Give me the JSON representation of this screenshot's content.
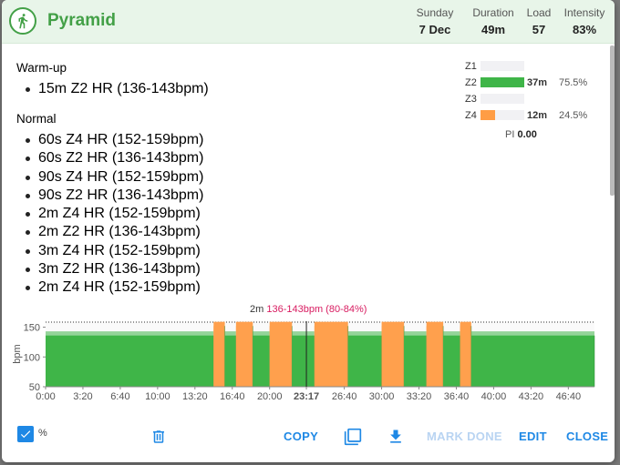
{
  "workout": {
    "title": "Pyramid",
    "stats": [
      {
        "label": "Sunday",
        "value": "7 Dec"
      },
      {
        "label": "Duration",
        "value": "49m"
      },
      {
        "label": "Load",
        "value": "57"
      },
      {
        "label": "Intensity",
        "value": "83%"
      }
    ]
  },
  "sections": [
    {
      "name": "Warm-up",
      "steps": [
        "15m Z2 HR (136-143bpm)"
      ]
    },
    {
      "name": "Normal",
      "steps": [
        "60s Z4 HR (152-159bpm)",
        "60s Z2 HR (136-143bpm)",
        "90s Z4 HR (152-159bpm)",
        "90s Z2 HR (136-143bpm)",
        "2m Z4 HR (152-159bpm)",
        "2m Z2 HR (136-143bpm)",
        "3m Z4 HR (152-159bpm)",
        "3m Z2 HR (136-143bpm)",
        "2m Z4 HR (152-159bpm)"
      ]
    }
  ],
  "zones": [
    {
      "label": "Z1",
      "time": "",
      "percent": "",
      "fraction": 0,
      "color": ""
    },
    {
      "label": "Z2",
      "time": "37m",
      "percent": "75.5%",
      "fraction": 1.0,
      "color": "#3fb548"
    },
    {
      "label": "Z3",
      "time": "",
      "percent": "",
      "fraction": 0,
      "color": ""
    },
    {
      "label": "Z4",
      "time": "12m",
      "percent": "24.5%",
      "fraction": 0.33,
      "color": "#ff9d45"
    }
  ],
  "pi": {
    "label": "PI",
    "value": "0.00"
  },
  "hover": {
    "duration": "2m",
    "range": "136-143bpm (80-84%)"
  },
  "colors": {
    "z2": "#3fb548",
    "z4": "#ffa04d",
    "accent": "#1e88e5",
    "title": "#43a047"
  },
  "chart_data": {
    "type": "area",
    "ylabel": "bpm",
    "ylim": [
      50,
      160
    ],
    "yticks": [
      50,
      100,
      150
    ],
    "xlim": [
      0,
      49
    ],
    "xticks": [
      "0:00",
      "3:20",
      "6:40",
      "10:00",
      "13:20",
      "16:40",
      "20:00",
      "23:17",
      "26:40",
      "30:00",
      "33:20",
      "36:40",
      "40:00",
      "43:20",
      "46:40"
    ],
    "highlight_tick": "23:17",
    "segments": [
      {
        "start": 0,
        "minutes": 15,
        "zone": "Z2",
        "low": 136,
        "high": 143
      },
      {
        "start": 15,
        "minutes": 1,
        "zone": "Z4",
        "low": 152,
        "high": 159
      },
      {
        "start": 16,
        "minutes": 1,
        "zone": "Z2",
        "low": 136,
        "high": 143
      },
      {
        "start": 17,
        "minutes": 1.5,
        "zone": "Z4",
        "low": 152,
        "high": 159
      },
      {
        "start": 18.5,
        "minutes": 1.5,
        "zone": "Z2",
        "low": 136,
        "high": 143
      },
      {
        "start": 20,
        "minutes": 2,
        "zone": "Z4",
        "low": 152,
        "high": 159
      },
      {
        "start": 22,
        "minutes": 2,
        "zone": "Z2",
        "low": 136,
        "high": 143
      },
      {
        "start": 24,
        "minutes": 3,
        "zone": "Z4",
        "low": 152,
        "high": 159
      },
      {
        "start": 27,
        "minutes": 3,
        "zone": "Z2",
        "low": 136,
        "high": 143
      },
      {
        "start": 30,
        "minutes": 2,
        "zone": "Z4",
        "low": 152,
        "high": 159
      },
      {
        "start": 32,
        "minutes": 2,
        "zone": "Z2",
        "low": 136,
        "high": 143
      },
      {
        "start": 34,
        "minutes": 1.5,
        "zone": "Z4",
        "low": 152,
        "high": 159
      },
      {
        "start": 35.5,
        "minutes": 1.5,
        "zone": "Z2",
        "low": 136,
        "high": 143
      },
      {
        "start": 37,
        "minutes": 1,
        "zone": "Z4",
        "low": 152,
        "high": 159
      },
      {
        "start": 38,
        "minutes": 11,
        "zone": "Z2",
        "low": 136,
        "high": 143
      }
    ]
  },
  "footer": {
    "percent_label": "%",
    "copy": "COPY",
    "mark_done": "MARK DONE",
    "edit": "EDIT",
    "close": "CLOSE"
  }
}
